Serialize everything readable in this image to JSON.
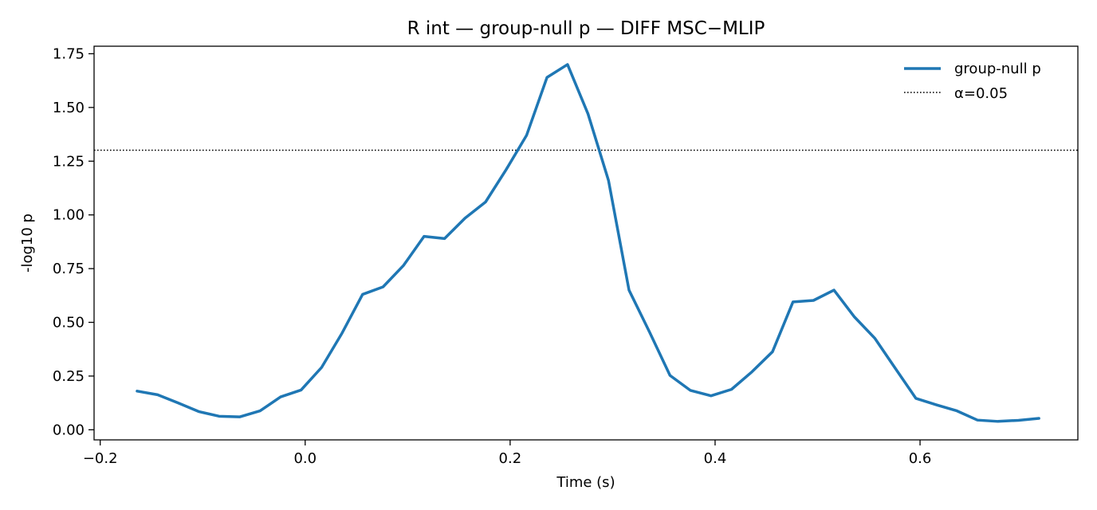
{
  "chart_data": {
    "type": "line",
    "title": "R int — group-null p — DIFF MSC−MLIP",
    "xlabel": "Time (s)",
    "ylabel": "-log10 p",
    "xlim": [
      -0.206,
      0.754
    ],
    "ylim": [
      -0.047,
      1.785
    ],
    "xticks": [
      -0.2,
      0.0,
      0.2,
      0.4,
      0.6
    ],
    "xtick_labels": [
      "−0.2",
      "0.0",
      "0.2",
      "0.4",
      "0.6"
    ],
    "yticks": [
      0.0,
      0.25,
      0.5,
      0.75,
      1.0,
      1.25,
      1.5,
      1.75
    ],
    "ytick_labels": [
      "0.00",
      "0.25",
      "0.50",
      "0.75",
      "1.00",
      "1.25",
      "1.50",
      "1.75"
    ],
    "grid": false,
    "legend_position": "top-right",
    "series": [
      {
        "name": "group-null p",
        "color": "#1f77b4",
        "style": "solid",
        "x": [
          -0.164,
          -0.144,
          -0.124,
          -0.104,
          -0.084,
          -0.064,
          -0.044,
          -0.024,
          -0.004,
          0.016,
          0.036,
          0.056,
          0.076,
          0.096,
          0.116,
          0.136,
          0.156,
          0.176,
          0.196,
          0.216,
          0.236,
          0.256,
          0.276,
          0.296,
          0.316,
          0.336,
          0.356,
          0.376,
          0.396,
          0.416,
          0.436,
          0.456,
          0.476,
          0.496,
          0.516,
          0.536,
          0.556,
          0.576,
          0.596,
          0.616,
          0.636,
          0.656,
          0.676,
          0.696,
          0.716
        ],
        "y": [
          0.18,
          0.163,
          0.125,
          0.085,
          0.063,
          0.06,
          0.088,
          0.153,
          0.185,
          0.29,
          0.45,
          0.63,
          0.665,
          0.765,
          0.9,
          0.89,
          0.985,
          1.06,
          1.21,
          1.37,
          1.64,
          1.7,
          1.47,
          1.16,
          0.65,
          0.455,
          0.253,
          0.183,
          0.158,
          0.188,
          0.27,
          0.363,
          0.595,
          0.602,
          0.65,
          0.525,
          0.425,
          0.285,
          0.146,
          0.116,
          0.088,
          0.045,
          0.039,
          0.044,
          0.053
        ]
      },
      {
        "name": "α=0.05",
        "color": "#000000",
        "style": "dotted",
        "hline": 1.301
      }
    ]
  }
}
